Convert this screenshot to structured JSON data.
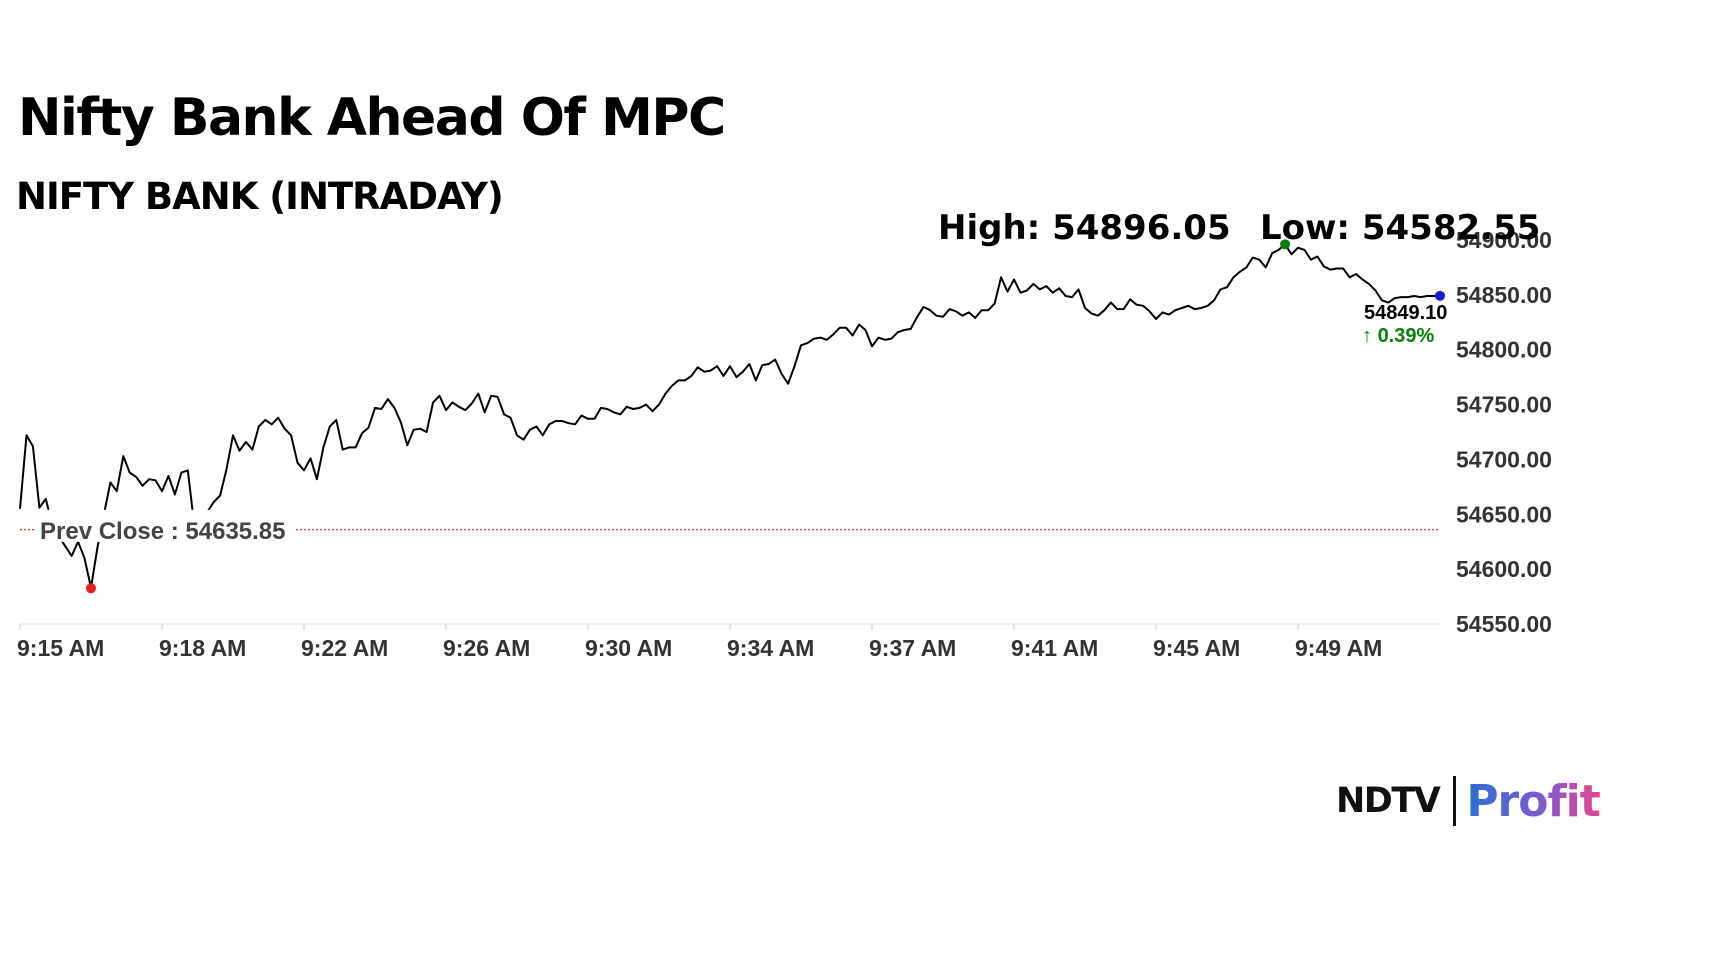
{
  "headline": "Nifty Bank Ahead Of MPC",
  "chart_data": {
    "type": "line",
    "title": "NIFTY BANK (INTRADAY)",
    "xlabel": "",
    "ylabel": "",
    "x_ticks": [
      "9:15 AM",
      "9:18 AM",
      "9:22 AM",
      "9:26 AM",
      "9:30 AM",
      "9:34 AM",
      "9:37 AM",
      "9:41 AM",
      "9:45 AM",
      "9:49 AM"
    ],
    "y_ticks": [
      "54550.00",
      "54600.00",
      "54650.00",
      "54700.00",
      "54750.00",
      "54800.00",
      "54850.00",
      "54900.00"
    ],
    "ylim": [
      54550,
      54900
    ],
    "x_range_minutes": [
      0,
      40
    ],
    "grid": false,
    "series": [
      {
        "values": [
          54655,
          54722,
          54712,
          54656,
          54664,
          54640,
          54630,
          54621,
          54612,
          54625,
          54610,
          54583,
          54620,
          54650,
          54679,
          54671,
          54703,
          54688,
          54684,
          54676,
          54682,
          54681,
          54671,
          54685,
          54668,
          54688,
          54690,
          54640,
          54637,
          54652,
          54661,
          54667,
          54691,
          54722,
          54708,
          54716,
          54709,
          54730,
          54736,
          54732,
          54738,
          54728,
          54722,
          54697,
          54690,
          54701,
          54682,
          54711,
          54730,
          54736,
          54709,
          54711,
          54711,
          54724,
          54729,
          54747,
          54746,
          54755,
          54747,
          54734,
          54713,
          54727,
          54728,
          54725,
          54752,
          54758,
          54745,
          54752,
          54748,
          54745,
          54751,
          54760,
          54743,
          54758,
          54757,
          54741,
          54738,
          54722,
          54718,
          54727,
          54730,
          54722,
          54732,
          54735,
          54735,
          54733,
          54732,
          54740,
          54737,
          54737,
          54747,
          54746,
          54743,
          54741,
          54748,
          54746,
          54747,
          54750,
          54744,
          54750,
          54760,
          54767,
          54772,
          54772,
          54776,
          54784,
          54780,
          54781,
          54785,
          54776,
          54785,
          54775,
          54780,
          54787,
          54772,
          54786,
          54787,
          54791,
          54778,
          54769,
          54785,
          54804,
          54806,
          54810,
          54811,
          54809,
          54814,
          54820,
          54820,
          54813,
          54823,
          54818,
          54803,
          54811,
          54809,
          54810,
          54816,
          54818,
          54819,
          54830,
          54839,
          54836,
          54831,
          54830,
          54837,
          54835,
          54831,
          54834,
          54829,
          54836,
          54836,
          54842,
          54866,
          54853,
          54864,
          54852,
          54854,
          54860,
          54855,
          54858,
          54852,
          54856,
          54849,
          54848,
          54855,
          54838,
          54833,
          54831,
          54836,
          54843,
          54837,
          54837,
          54846,
          54841,
          54840,
          54835,
          54828,
          54834,
          54832,
          54836,
          54838,
          54840,
          54837,
          54838,
          54840,
          54845,
          54855,
          54857,
          54866,
          54871,
          54875,
          54884,
          54882,
          54875,
          54888,
          54891,
          54896,
          54887,
          54893,
          54891,
          54882,
          54885,
          54876,
          54873,
          54874,
          54874,
          54866,
          54869,
          54864,
          54860,
          54854,
          54845,
          54843,
          54847,
          54848,
          54848,
          54849,
          54848,
          54849,
          54849,
          54849.1
        ]
      }
    ],
    "high": {
      "label": "High: 54896.05",
      "value": 54896.05,
      "color": "#0a7d0a"
    },
    "low": {
      "label": "Low: 54582.55",
      "value": 54582.55,
      "color": "#e81f1f"
    },
    "prev_close": {
      "label": "Prev Close : 54635.85",
      "value": 54635.85,
      "color": "#cc0000"
    },
    "last": {
      "price": "54849.10",
      "change": "0.39%",
      "change_color": "#0a7d0a",
      "marker_color": "#1a1acc"
    },
    "line_color": "#000000"
  },
  "branding": {
    "ndtv": "NDTV",
    "profit": "Profit"
  }
}
